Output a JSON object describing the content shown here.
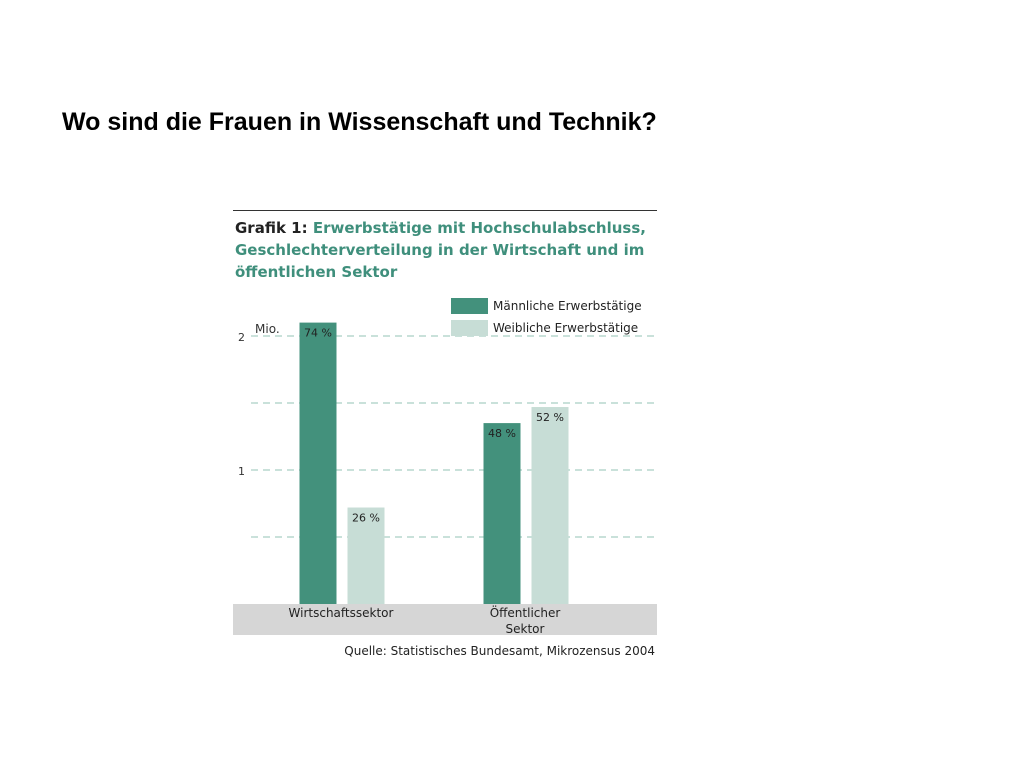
{
  "slide": {
    "title": "Wo sind die Frauen in Wissenschaft und Technik?"
  },
  "figure": {
    "caption_prefix": "Grafik 1:",
    "caption_text": "Erwerbstätige mit Hochschulabschluss, Geschlechterverteilung in der Wirtschaft und im öffentlichen Sektor",
    "source": "Quelle: Statistisches Bundesamt, Mikrozensus 2004"
  },
  "colors": {
    "male": "#43917c",
    "female": "#c7ddd6",
    "title_accent": "#3f8f7c",
    "category_band": "#d6d6d6",
    "gridline": "#a9cfc4"
  },
  "chart_data": {
    "type": "bar",
    "unit_label": "Mio.",
    "categories": [
      [
        "Wirtschaftssektor"
      ],
      [
        "Öffentlicher",
        "Sektor"
      ]
    ],
    "series": [
      {
        "name": "Männliche Erwerbstätige",
        "values": [
          2.1,
          1.35
        ],
        "labels": [
          "74 %",
          "48 %"
        ]
      },
      {
        "name": "Weibliche Erwerbstätige",
        "values": [
          0.72,
          1.47
        ],
        "labels": [
          "26 %",
          "52 %"
        ]
      }
    ],
    "yticks": [
      "1",
      "2"
    ],
    "ytick_values": [
      1,
      2
    ],
    "gridlines": [
      0.5,
      1,
      1.5,
      2
    ],
    "ylim": [
      0,
      2.15
    ],
    "legend_position": "top-right"
  }
}
